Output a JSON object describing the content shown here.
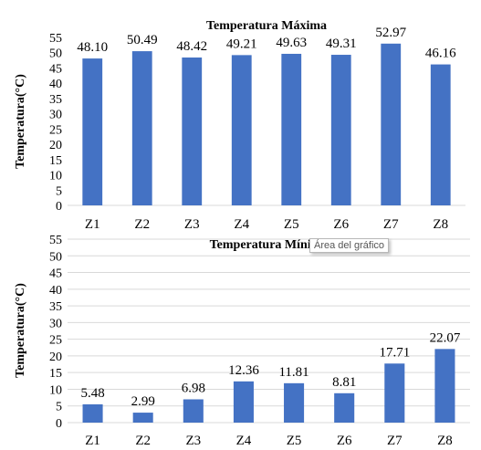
{
  "chart_data": [
    {
      "type": "bar",
      "title": "Temperatura Máxima",
      "ylabel": "Temperatura(°C)",
      "xlabel": "",
      "categories": [
        "Z1",
        "Z2",
        "Z3",
        "Z4",
        "Z5",
        "Z6",
        "Z7",
        "Z8"
      ],
      "values": [
        48.1,
        50.49,
        48.42,
        49.21,
        49.63,
        49.31,
        52.97,
        46.16
      ],
      "data_labels": [
        "48.10",
        "50.49",
        "48.42",
        "49.21",
        "49.63",
        "49.31",
        "52.97",
        "46.16"
      ],
      "ylim": [
        0,
        55
      ],
      "yticks": [
        0,
        5,
        10,
        15,
        20,
        25,
        30,
        35,
        40,
        45,
        50,
        55
      ],
      "grid": false,
      "legend": "none",
      "bar_color": "#4472c4"
    },
    {
      "type": "bar",
      "title": "Temperatura Mínima",
      "ylabel": "Temperatura(°C)",
      "xlabel": "",
      "categories": [
        "Z1",
        "Z2",
        "Z3",
        "Z4",
        "Z5",
        "Z6",
        "Z7",
        "Z8"
      ],
      "values": [
        5.48,
        2.99,
        6.98,
        12.36,
        11.81,
        8.81,
        17.71,
        22.07
      ],
      "data_labels": [
        "5.48",
        "2.99",
        "6.98",
        "12.36",
        "11.81",
        "8.81",
        "17.71",
        "22.07"
      ],
      "ylim": [
        0,
        55
      ],
      "yticks": [
        0,
        5,
        10,
        15,
        20,
        25,
        30,
        35,
        40,
        45,
        50,
        55
      ],
      "grid": true,
      "legend": "none",
      "bar_color": "#4472c4"
    }
  ],
  "tooltip": {
    "text": "Área del gráfico"
  }
}
